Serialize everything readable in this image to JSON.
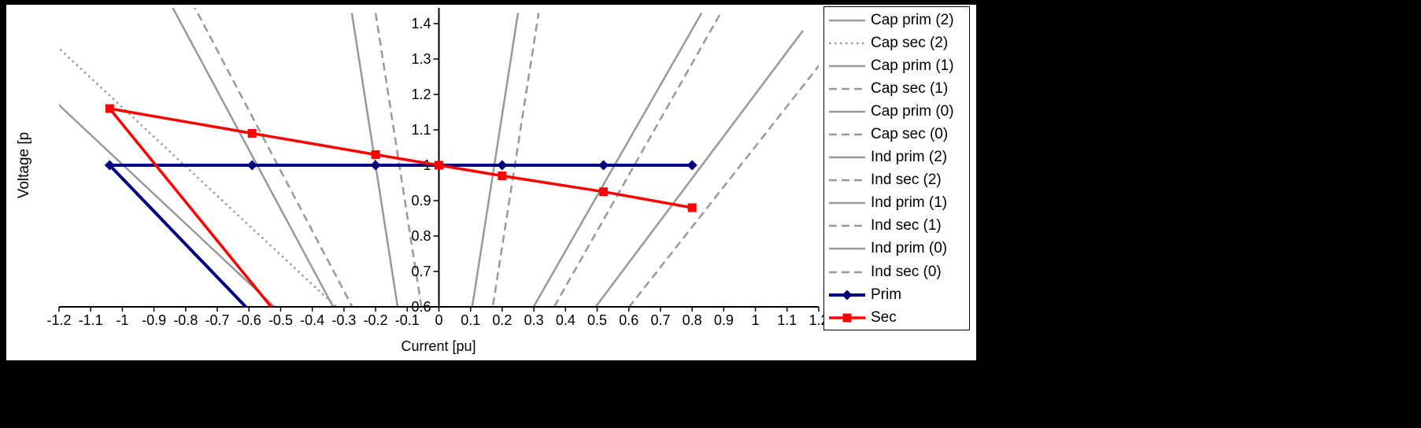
{
  "colors": {
    "background": "#000000",
    "chart_background": "#FFFFFF",
    "axis": "#000000",
    "gray_series": "#999999",
    "prim_series": "#000080",
    "sec_series": "#FF0000"
  },
  "chart_data": {
    "type": "line",
    "title": "",
    "xlabel": "Current [pu]",
    "ylabel": "Voltage [p",
    "xlim": [
      -1.2,
      1.2
    ],
    "ylim": [
      0.6,
      1.4
    ],
    "grid": false,
    "legend_position": "right",
    "x_axis": {
      "label": "Current [pu]",
      "min": -1.2,
      "max": 1.2,
      "tick_values": [
        -1.2,
        -1.1,
        -1,
        -0.9,
        -0.8,
        -0.7,
        -0.6,
        -0.5,
        -0.4,
        -0.3,
        -0.2,
        -0.1,
        0,
        0.1,
        0.2,
        0.3,
        0.4,
        0.5,
        0.6,
        0.7,
        0.8,
        0.9,
        1,
        1.1,
        1.2
      ],
      "tick_labels": [
        "-1.2",
        "-1.1",
        "-1",
        "-0.9",
        "-0.8",
        "-0.7",
        "-0.6",
        "-0.5",
        "-0.4",
        "-0.3",
        "-0.2",
        "-0.1",
        "0",
        "0.1",
        "0.2",
        "0.3",
        "0.4",
        "0.5",
        "0.6",
        "0.7",
        "0.8",
        "0.9",
        "1",
        "1.1",
        "1.2"
      ]
    },
    "y_axis": {
      "label": "Voltage [p",
      "min": 0.6,
      "max": 1.4,
      "tick_values": [
        1.4,
        1.3,
        1.2,
        1.1,
        1,
        0.9,
        0.8,
        0.7,
        0.6
      ],
      "tick_labels": [
        "1.4",
        "1.3",
        "1.2",
        "1.1",
        "1",
        "0.9",
        "0.8",
        "0.7",
        "0.6"
      ]
    },
    "series": [
      {
        "name": "Cap prim (2)",
        "color": "#999999",
        "style": "solid",
        "width": 2.5,
        "marker": "none",
        "points": [
          [
            -1.26,
            1.22
          ],
          [
            -0.46,
            0.55
          ]
        ]
      },
      {
        "name": "Cap sec (2)",
        "color": "#999999",
        "style": "dotted",
        "width": 2.5,
        "marker": "none",
        "points": [
          [
            -1.26,
            1.38
          ],
          [
            -0.3,
            0.58
          ]
        ]
      },
      {
        "name": "Cap prim (1)",
        "color": "#999999",
        "style": "solid",
        "width": 2.5,
        "marker": "none",
        "points": [
          [
            -0.85,
            1.46
          ],
          [
            -0.31,
            0.56
          ]
        ]
      },
      {
        "name": "Cap sec (1)",
        "color": "#999999",
        "style": "dashed",
        "width": 2.5,
        "marker": "none",
        "points": [
          [
            -0.78,
            1.46
          ],
          [
            -0.25,
            0.56
          ]
        ]
      },
      {
        "name": "Cap prim (0)",
        "color": "#999999",
        "style": "solid",
        "width": 2.5,
        "marker": "none",
        "points": [
          [
            -0.275,
            1.43
          ],
          [
            -0.125,
            0.57
          ]
        ]
      },
      {
        "name": "Cap sec (0)",
        "color": "#999999",
        "style": "dashed",
        "width": 2.5,
        "marker": "none",
        "points": [
          [
            -0.2,
            1.43
          ],
          [
            -0.05,
            0.57
          ]
        ]
      },
      {
        "name": "Ind prim (2)",
        "color": "#999999",
        "style": "solid",
        "width": 2.5,
        "marker": "none",
        "points": [
          [
            0.1,
            0.57
          ],
          [
            0.25,
            1.43
          ]
        ]
      },
      {
        "name": "Ind sec (2)",
        "color": "#999999",
        "style": "dashed",
        "width": 2.5,
        "marker": "none",
        "points": [
          [
            0.165,
            0.57
          ],
          [
            0.315,
            1.43
          ]
        ]
      },
      {
        "name": "Ind prim (1)",
        "color": "#999999",
        "style": "solid",
        "width": 2.5,
        "marker": "none",
        "points": [
          [
            0.28,
            0.57
          ],
          [
            0.83,
            1.43
          ]
        ]
      },
      {
        "name": "Ind sec (1)",
        "color": "#999999",
        "style": "dashed",
        "width": 2.5,
        "marker": "none",
        "points": [
          [
            0.345,
            0.57
          ],
          [
            0.89,
            1.43
          ]
        ]
      },
      {
        "name": "Ind prim (0)",
        "color": "#999999",
        "style": "solid",
        "width": 2.5,
        "marker": "none",
        "points": [
          [
            0.47,
            0.57
          ],
          [
            1.15,
            1.38
          ]
        ]
      },
      {
        "name": "Ind sec (0)",
        "color": "#999999",
        "style": "dashed",
        "width": 2.5,
        "marker": "none",
        "points": [
          [
            0.575,
            0.57
          ],
          [
            1.27,
            1.36
          ]
        ]
      },
      {
        "name": "Prim",
        "color": "#000080",
        "style": "solid",
        "width": 4,
        "marker": "diamond",
        "marker_size": 13,
        "points": [
          [
            -0.61,
            0.6
          ],
          [
            -1.04,
            1.0
          ],
          [
            -0.59,
            1.0
          ],
          [
            -0.2,
            1.0
          ],
          [
            0,
            1.0
          ],
          [
            0.2,
            1.0
          ],
          [
            0.52,
            1.0
          ],
          [
            0.8,
            1.0
          ]
        ],
        "marker_points": [
          [
            -1.04,
            1.0
          ],
          [
            -0.59,
            1.0
          ],
          [
            -0.2,
            1.0
          ],
          [
            0,
            1.0
          ],
          [
            0.2,
            1.0
          ],
          [
            0.52,
            1.0
          ],
          [
            0.8,
            1.0
          ]
        ]
      },
      {
        "name": "Sec",
        "color": "#FF0000",
        "style": "solid",
        "width": 3.5,
        "marker": "square",
        "marker_size": 11,
        "points": [
          [
            -0.53,
            0.6
          ],
          [
            -1.04,
            1.16
          ],
          [
            -0.59,
            1.09
          ],
          [
            -0.2,
            1.03
          ],
          [
            0,
            1.0
          ],
          [
            0.2,
            0.97
          ],
          [
            0.52,
            0.925
          ],
          [
            0.8,
            0.88
          ]
        ],
        "marker_points": [
          [
            -1.04,
            1.16
          ],
          [
            -0.59,
            1.09
          ],
          [
            -0.2,
            1.03
          ],
          [
            0,
            1.0
          ],
          [
            0.2,
            0.97
          ],
          [
            0.52,
            0.925
          ],
          [
            0.8,
            0.88
          ]
        ]
      }
    ]
  },
  "legend": {
    "items": [
      "Cap prim (2)",
      "Cap sec (2)",
      "Cap prim (1)",
      "Cap sec (1)",
      "Cap prim (0)",
      "Cap sec (0)",
      "Ind prim (2)",
      "Ind sec (2)",
      "Ind prim (1)",
      "Ind sec (1)",
      "Ind prim (0)",
      "Ind sec (0)",
      "Prim",
      "Sec"
    ]
  }
}
